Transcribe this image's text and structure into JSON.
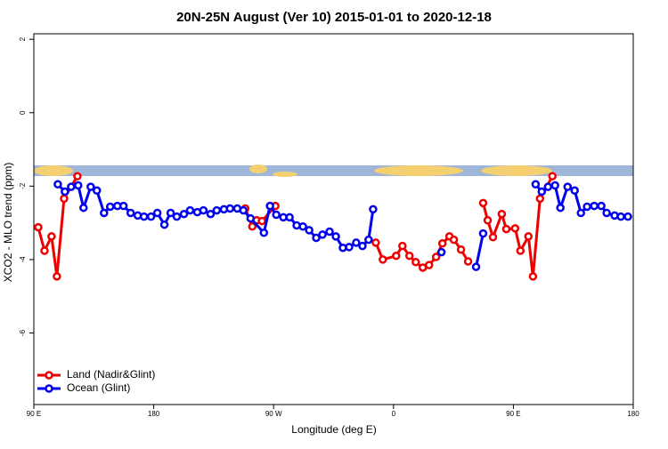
{
  "chart_data": {
    "type": "line",
    "title": "20N-25N August (Ver 10)   2015-01-01 to 2020-12-18",
    "xlabel": "Longitude (deg E)",
    "ylabel": "XCO2 - MLO trend (ppm)",
    "xlim": [
      90,
      540
    ],
    "xticks": [
      {
        "value": 90,
        "label": "90 E"
      },
      {
        "value": 180,
        "label": "180"
      },
      {
        "value": 270,
        "label": "90 W"
      },
      {
        "value": 360,
        "label": "0"
      },
      {
        "value": 450,
        "label": "90 E"
      },
      {
        "value": 540,
        "label": "180"
      }
    ],
    "ylim": [
      -7.95,
      2.15
    ],
    "yticks": [
      2,
      0,
      -2,
      -4,
      -6
    ],
    "legend": "bottomleft",
    "series": [
      {
        "name": "Land (Nadir&Glint)",
        "color": "#ee0000",
        "x": [
          93.3,
          98,
          103.3,
          107.3,
          112.7,
          122.7,
          null,
          248.7,
          254,
          257.3,
          261.3,
          271.3,
          null,
          346.7,
          352,
          362,
          366.7,
          372,
          376.7,
          382,
          386.7,
          392,
          396.7,
          402,
          405.3,
          410.7,
          416,
          null,
          427.3,
          430.7,
          434.7,
          441.3,
          444.7,
          451.3,
          455.3,
          461.3,
          464.7,
          470,
          479.3
        ],
        "values": [
          -3.12,
          -3.76,
          -3.37,
          -4.46,
          -2.34,
          -1.73,
          null,
          -2.61,
          -3.1,
          -2.93,
          -2.95,
          -2.54,
          null,
          -3.54,
          -4.0,
          -3.9,
          -3.63,
          -3.9,
          -4.07,
          -4.22,
          -4.15,
          -3.93,
          -3.56,
          -3.37,
          -3.46,
          -3.73,
          -4.05,
          null,
          -2.46,
          -2.93,
          -3.39,
          -2.76,
          -3.17,
          -3.15,
          -3.76,
          -3.37,
          -4.46,
          -2.34,
          -1.73
        ]
      },
      {
        "name": "Ocean (Glint)",
        "color": "#0000ee",
        "x": [
          108,
          113.3,
          118,
          123.3,
          127.3,
          132.7,
          137.3,
          142.7,
          147.3,
          152.7,
          157.3,
          162.7,
          168,
          172.7,
          178,
          182.7,
          188,
          192.7,
          197.3,
          202.7,
          207.3,
          212.7,
          217.3,
          222.7,
          227.3,
          232.7,
          237.3,
          242.7,
          247.3,
          252.7,
          262.7,
          267.3,
          272,
          277.3,
          282,
          287.3,
          292,
          296.7,
          302,
          306.7,
          312,
          316.7,
          322,
          326.7,
          332,
          336.7,
          341.3,
          344.7,
          null,
          396,
          null,
          422,
          427.3,
          null,
          466.7,
          471.3,
          476,
          481.3,
          485.3,
          490.7,
          496,
          500.7,
          505.3,
          510.7,
          516,
          520,
          526,
          530.7,
          536
        ],
        "values": [
          -1.95,
          -2.15,
          -2.02,
          -1.98,
          -2.59,
          -2.02,
          -2.12,
          -2.73,
          -2.56,
          -2.54,
          -2.54,
          -2.73,
          -2.8,
          -2.83,
          -2.83,
          -2.73,
          -3.05,
          -2.73,
          -2.83,
          -2.76,
          -2.66,
          -2.71,
          -2.66,
          -2.76,
          -2.66,
          -2.63,
          -2.61,
          -2.61,
          -2.66,
          -2.88,
          -3.27,
          -2.54,
          -2.78,
          -2.85,
          -2.85,
          -3.07,
          -3.1,
          -3.2,
          -3.41,
          -3.32,
          -3.24,
          -3.37,
          -3.68,
          -3.66,
          -3.54,
          -3.63,
          -3.46,
          -2.63,
          null,
          -3.8,
          null,
          -4.2,
          -3.29,
          null,
          -1.95,
          -2.15,
          -2.02,
          -1.98,
          -2.59,
          -2.02,
          -2.12,
          -2.73,
          -2.56,
          -2.54,
          -2.54,
          -2.73,
          -2.8,
          -2.83,
          -2.83
        ]
      }
    ]
  }
}
